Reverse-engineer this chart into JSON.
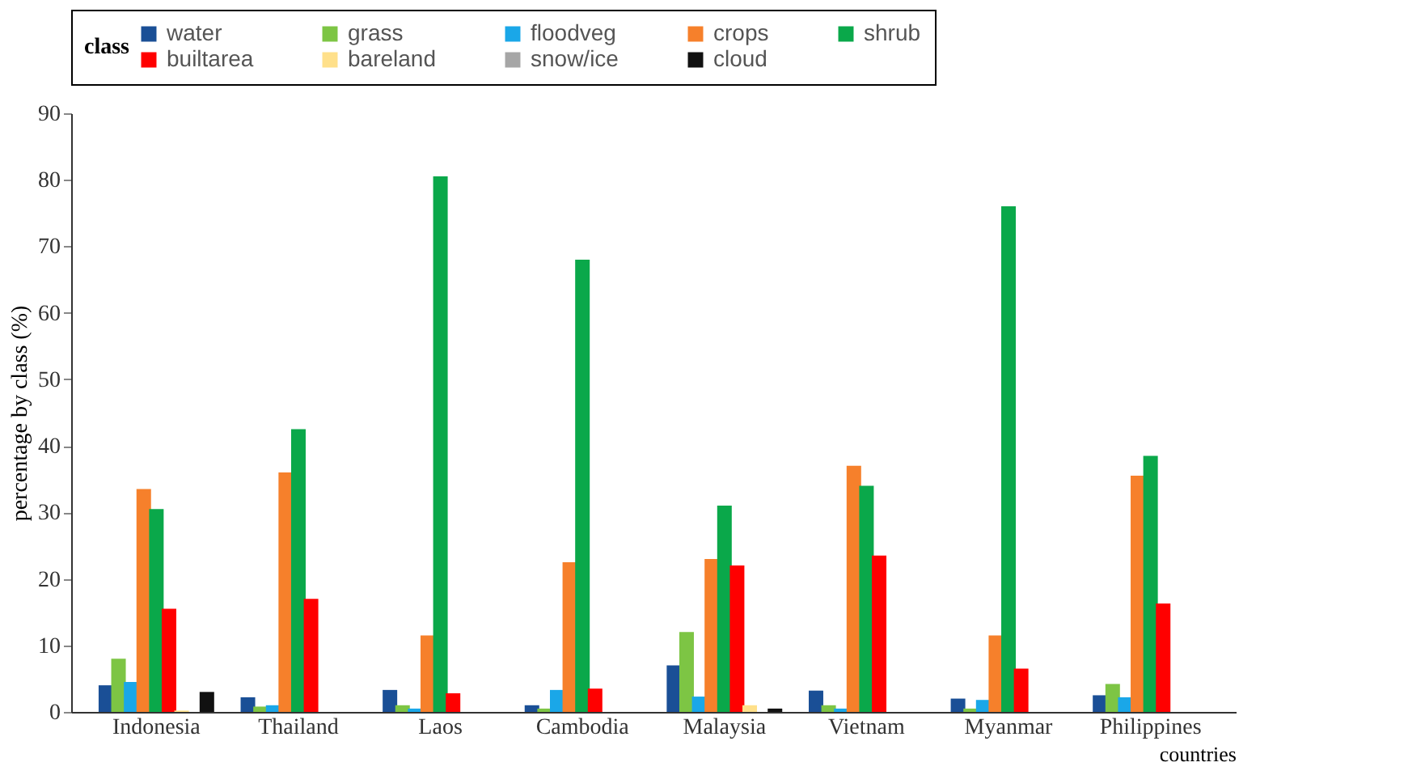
{
  "chart_data": {
    "type": "bar",
    "xlabel": "countries",
    "ylabel": "percentage by class (%)",
    "legend_title": "class",
    "categories": [
      "Indonesia",
      "Thailand",
      "Laos",
      "Cambodia",
      "Malaysia",
      "Vietnam",
      "Myanmar",
      "Philippines"
    ],
    "series": [
      {
        "name": "water",
        "color": "#1a4f96",
        "values": [
          4,
          2.2,
          3.3,
          1,
          7,
          3.2,
          2,
          2.5
        ]
      },
      {
        "name": "grass",
        "color": "#7dc544",
        "values": [
          8,
          0.8,
          1,
          0.5,
          12,
          1,
          0.5,
          4.2
        ]
      },
      {
        "name": "floodveg",
        "color": "#1aa7e8",
        "values": [
          4.5,
          1,
          0.5,
          3.3,
          2.3,
          0.5,
          1.8,
          2.2
        ]
      },
      {
        "name": "crops",
        "color": "#f6802b",
        "values": [
          33.5,
          36,
          11.5,
          22.5,
          23,
          37,
          11.5,
          35.5
        ]
      },
      {
        "name": "shrub",
        "color": "#0aa84a",
        "values": [
          30.5,
          42.5,
          80.5,
          68,
          31,
          34,
          76,
          38.5
        ]
      },
      {
        "name": "builtarea",
        "color": "#ff0000",
        "values": [
          15.5,
          17,
          2.8,
          3.5,
          22,
          23.5,
          6.5,
          16.3
        ]
      },
      {
        "name": "bareland",
        "color": "#ffe08a",
        "values": [
          0.2,
          0,
          0,
          0,
          1,
          0,
          0,
          0
        ]
      },
      {
        "name": "snow/ice",
        "color": "#a6a6a6",
        "values": [
          0,
          0,
          0,
          0,
          0,
          0,
          0,
          0
        ]
      },
      {
        "name": "cloud",
        "color": "#111111",
        "values": [
          3,
          0,
          0,
          0,
          0.5,
          0,
          0,
          0
        ]
      }
    ],
    "ylim": [
      0,
      90
    ],
    "yticks": [
      0,
      10,
      20,
      30,
      40,
      50,
      60,
      70,
      80,
      90
    ],
    "grid": false,
    "legend": "top"
  }
}
